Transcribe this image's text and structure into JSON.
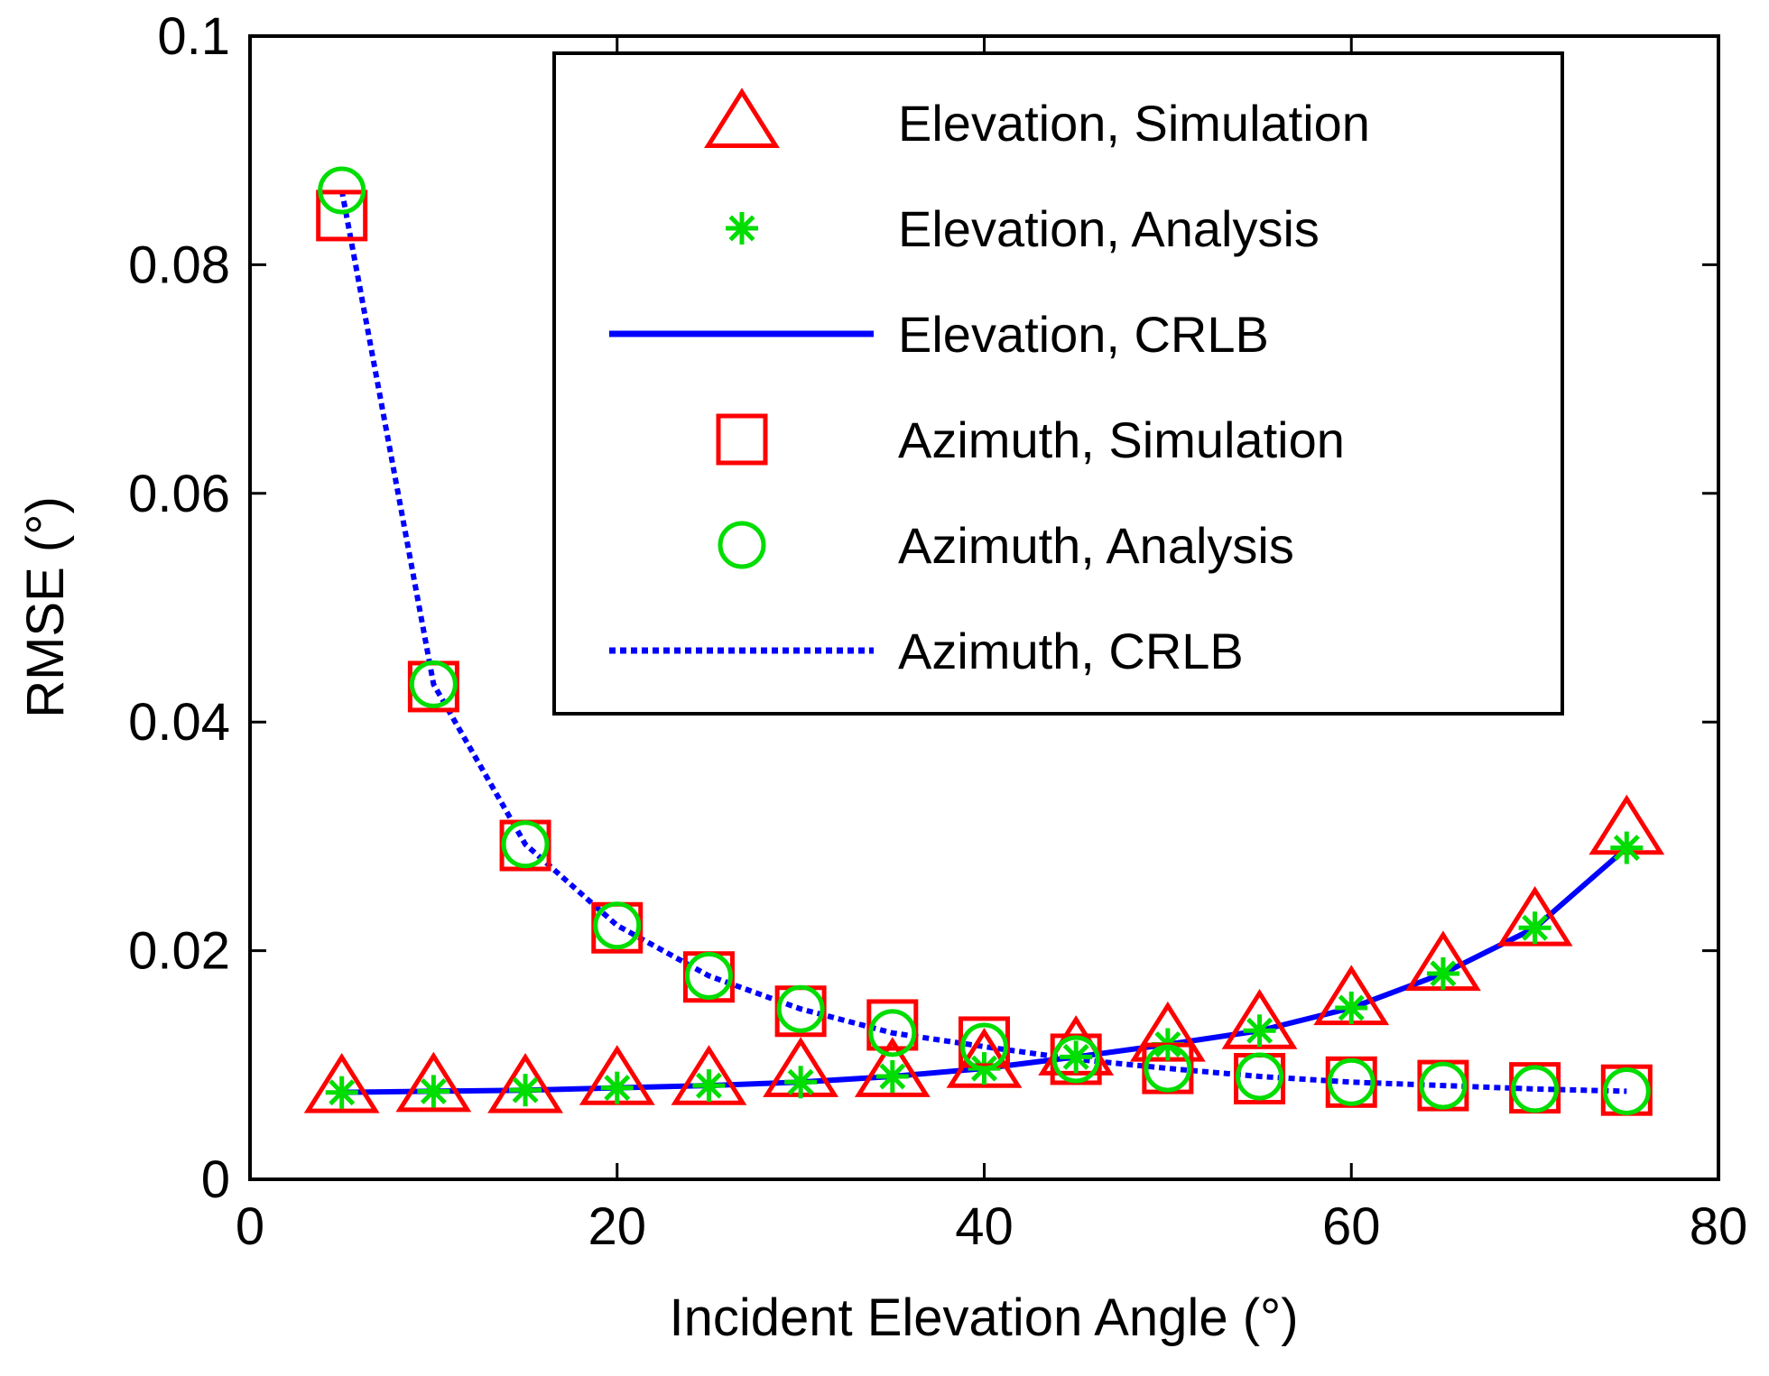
{
  "chart_data": {
    "type": "line",
    "title": "",
    "xlabel": "Incident Elevation Angle (°)",
    "ylabel": "RMSE (°)",
    "xlim": [
      0,
      80
    ],
    "ylim": [
      0,
      0.1
    ],
    "grid": false,
    "legend_position": "top-right",
    "x_ticks": [
      0,
      20,
      40,
      60,
      80
    ],
    "x_tick_labels": [
      "0",
      "20",
      "40",
      "60",
      "80"
    ],
    "y_ticks": [
      0,
      0.02,
      0.04,
      0.06,
      0.08,
      0.1
    ],
    "y_tick_labels": [
      "0",
      "0.02",
      "0.04",
      "0.06",
      "0.08",
      "0.1"
    ],
    "x": [
      5,
      10,
      15,
      20,
      25,
      30,
      35,
      40,
      45,
      50,
      55,
      60,
      65,
      70,
      75
    ],
    "series": [
      {
        "name": "Elevation, Simulation",
        "style": "triangle",
        "color": "#ff0000",
        "values": [
          0.008,
          0.0081,
          0.008,
          0.0087,
          0.0087,
          0.0094,
          0.0094,
          0.0102,
          0.0113,
          0.0125,
          0.0136,
          0.0157,
          0.0187,
          0.0226,
          0.0306
        ]
      },
      {
        "name": "Elevation, Analysis",
        "style": "star",
        "color": "#00dd00",
        "values": [
          0.0076,
          0.0077,
          0.0078,
          0.008,
          0.0082,
          0.0085,
          0.009,
          0.0097,
          0.0107,
          0.0118,
          0.013,
          0.015,
          0.018,
          0.022,
          0.029
        ]
      },
      {
        "name": "Elevation, CRLB",
        "style": "solid-line",
        "color": "#0000ff",
        "values": [
          0.0076,
          0.0077,
          0.0078,
          0.008,
          0.0082,
          0.0085,
          0.009,
          0.0097,
          0.0107,
          0.0118,
          0.013,
          0.015,
          0.018,
          0.022,
          0.029
        ]
      },
      {
        "name": "Azimuth, Simulation",
        "style": "square",
        "color": "#ff0000",
        "values": [
          0.0843,
          0.0431,
          0.0292,
          0.022,
          0.0177,
          0.0147,
          0.0135,
          0.012,
          0.0105,
          0.0097,
          0.0088,
          0.0085,
          0.0082,
          0.008,
          0.0078
        ]
      },
      {
        "name": "Azimuth, Analysis",
        "style": "circle",
        "color": "#00dd00",
        "values": [
          0.0865,
          0.0433,
          0.0293,
          0.0222,
          0.0178,
          0.0149,
          0.0128,
          0.0116,
          0.0105,
          0.0097,
          0.009,
          0.0085,
          0.0082,
          0.0079,
          0.0077
        ]
      },
      {
        "name": "Azimuth, CRLB",
        "style": "dotted-line",
        "color": "#0000ff",
        "values": [
          0.0865,
          0.0433,
          0.0293,
          0.0222,
          0.0178,
          0.0149,
          0.0128,
          0.0116,
          0.0105,
          0.0097,
          0.009,
          0.0085,
          0.0082,
          0.0079,
          0.0077
        ]
      }
    ]
  }
}
